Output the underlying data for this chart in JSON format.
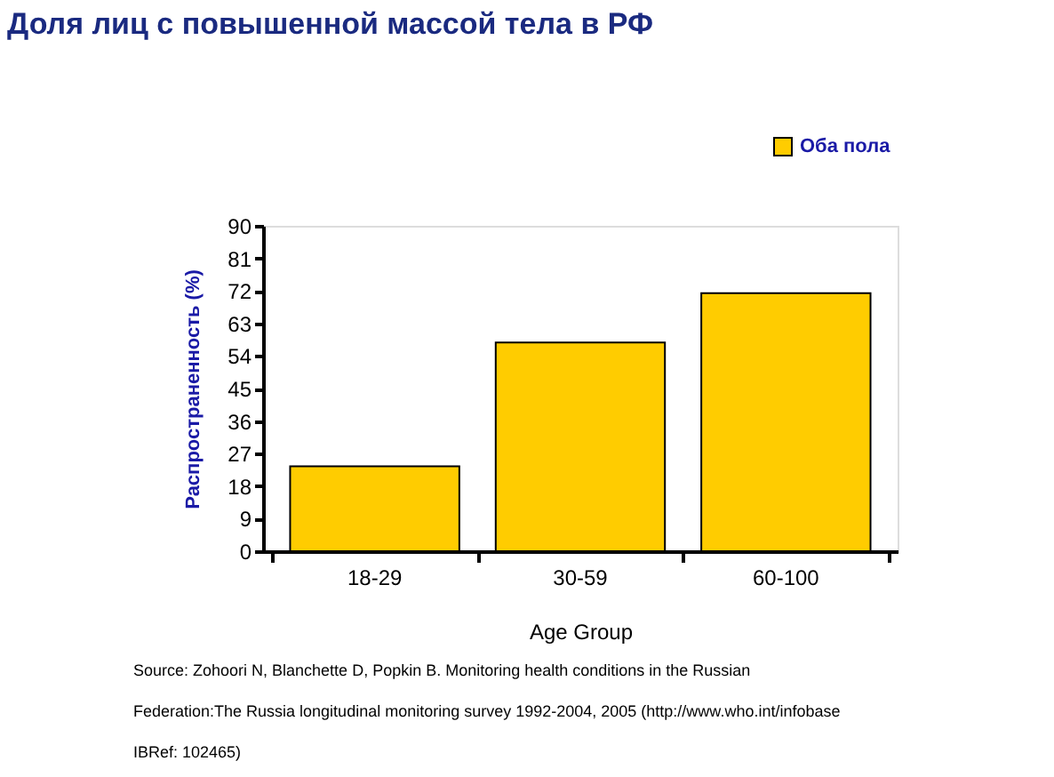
{
  "chart_data": {
    "type": "bar",
    "title": "Доля лиц с повышенной массой тела в РФ",
    "xlabel": "Age Group",
    "ylabel": "Распространенность (%)",
    "categories": [
      "18-29",
      "30-59",
      "60-100"
    ],
    "series": [
      {
        "name": "Оба пола",
        "color": "#ffcc00",
        "values": [
          23.5,
          57.7,
          71.4
        ]
      }
    ],
    "ylim": [
      0,
      90
    ],
    "yticks": [
      0,
      9,
      18,
      27,
      36,
      45,
      54,
      63,
      72,
      81,
      90
    ],
    "grid": false,
    "legend": "top right",
    "annotations": [
      "Source: Zohoori N, Blanchette D, Popkin B. Monitoring health conditions in the Russian",
      "Federation:The Russia longitudinal monitoring survey 1992-2004, 2005  (http://www.who.int/infobase",
      "IBRef: 102465)"
    ]
  }
}
